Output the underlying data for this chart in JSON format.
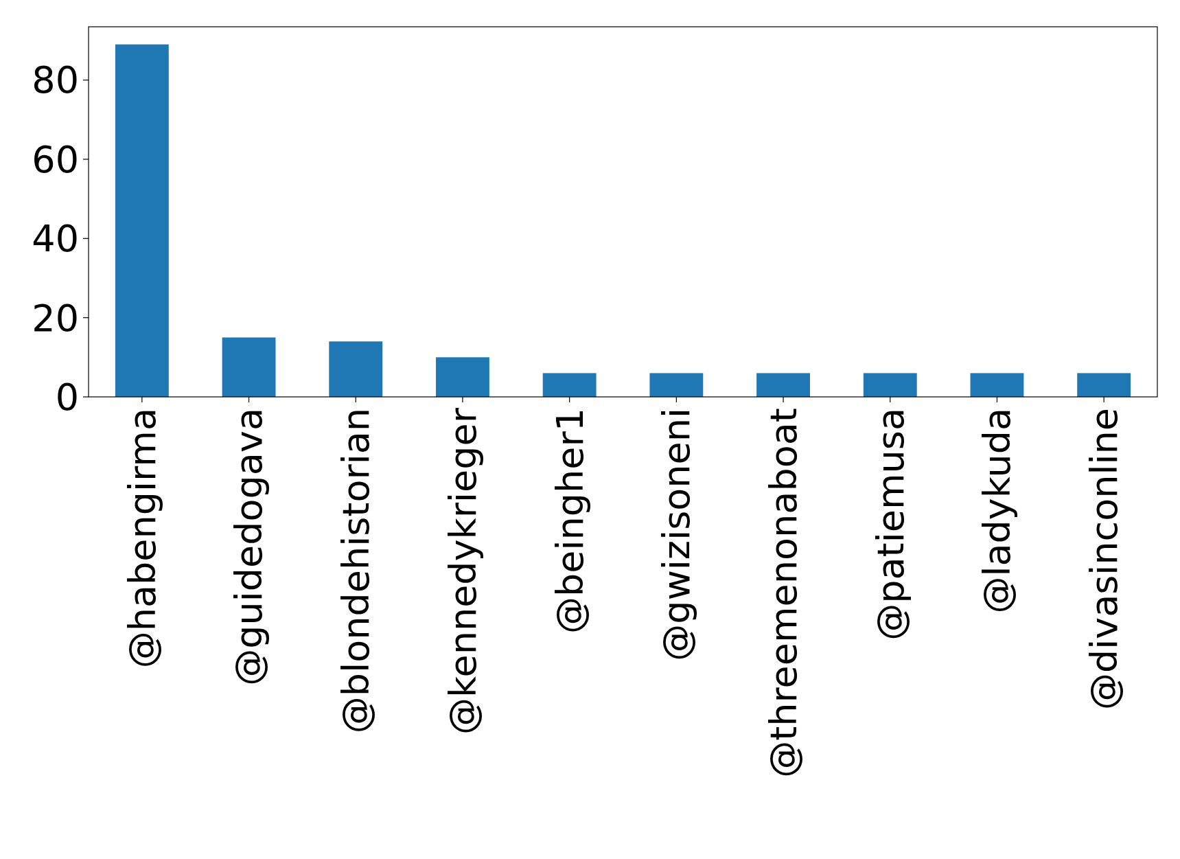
{
  "chart_data": {
    "type": "bar",
    "categories": [
      "@habengirma",
      "@guidedogava",
      "@blondehistorian",
      "@kennedykrieger",
      "@beingher1",
      "@gwizisoneni",
      "@threemenonaboat",
      "@patiemusa",
      "@ladykuda",
      "@divasinconline"
    ],
    "values": [
      89,
      15,
      14,
      10,
      6,
      6,
      6,
      6,
      6,
      6
    ],
    "color": "#1f77b4",
    "ylim": [
      0,
      93.45
    ],
    "yticks": [
      0,
      20,
      40,
      60,
      80
    ],
    "grid": false
  }
}
